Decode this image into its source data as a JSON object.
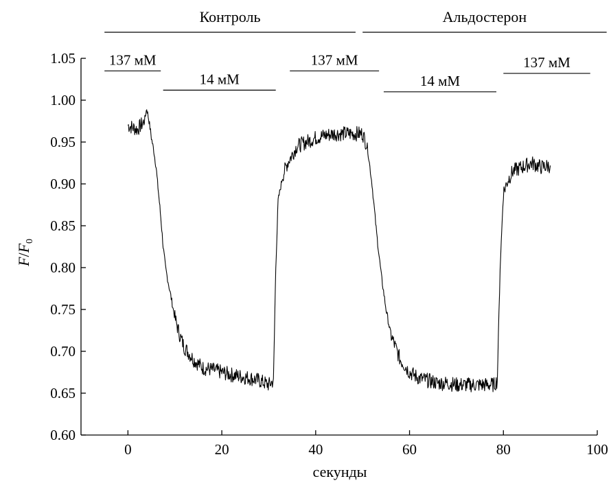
{
  "chart_data": {
    "type": "line",
    "title": "",
    "xlabel": "секунды",
    "ylabel_main": "F",
    "ylabel_sub": "0",
    "xlim": [
      -10,
      100
    ],
    "ylim": [
      0.6,
      1.05
    ],
    "x_ticks": [
      0,
      20,
      40,
      60,
      80,
      100
    ],
    "x_tick_labels": [
      "0",
      "20",
      "40",
      "60",
      "80",
      "100"
    ],
    "y_ticks": [
      0.6,
      0.65,
      0.7,
      0.75,
      0.8,
      0.85,
      0.9,
      0.95,
      1.0,
      1.05
    ],
    "y_tick_labels": [
      "0.60",
      "0.65",
      "0.70",
      "0.75",
      "0.80",
      "0.85",
      "0.90",
      "0.95",
      "1.00",
      "1.05"
    ],
    "grid": false,
    "legend": "none",
    "series": [
      {
        "color": "#000000",
        "points": [
          [
            0,
            0.97
          ],
          [
            2,
            0.965
          ],
          [
            3.5,
            0.975
          ],
          [
            4,
            0.99
          ],
          [
            4.5,
            0.975
          ],
          [
            5,
            0.955
          ],
          [
            5.5,
            0.94
          ],
          [
            6,
            0.92
          ],
          [
            6.5,
            0.89
          ],
          [
            7,
            0.86
          ],
          [
            7.5,
            0.825
          ],
          [
            8,
            0.8
          ],
          [
            9,
            0.77
          ],
          [
            10,
            0.74
          ],
          [
            11,
            0.72
          ],
          [
            12,
            0.705
          ],
          [
            14,
            0.69
          ],
          [
            16,
            0.68
          ],
          [
            18,
            0.678
          ],
          [
            20,
            0.675
          ],
          [
            22,
            0.672
          ],
          [
            24,
            0.67
          ],
          [
            26,
            0.668
          ],
          [
            28,
            0.665
          ],
          [
            30,
            0.66
          ],
          [
            31,
            0.665
          ],
          [
            31.5,
            0.8
          ],
          [
            32,
            0.88
          ],
          [
            33,
            0.91
          ],
          [
            34,
            0.925
          ],
          [
            35,
            0.935
          ],
          [
            36,
            0.945
          ],
          [
            38,
            0.95
          ],
          [
            40,
            0.955
          ],
          [
            42,
            0.958
          ],
          [
            44,
            0.96
          ],
          [
            46,
            0.96
          ],
          [
            48,
            0.96
          ],
          [
            50,
            0.96
          ],
          [
            51,
            0.945
          ],
          [
            52,
            0.9
          ],
          [
            53,
            0.84
          ],
          [
            54,
            0.79
          ],
          [
            55,
            0.75
          ],
          [
            56,
            0.72
          ],
          [
            57,
            0.705
          ],
          [
            58,
            0.69
          ],
          [
            59,
            0.683
          ],
          [
            60,
            0.675
          ],
          [
            62,
            0.668
          ],
          [
            64,
            0.665
          ],
          [
            66,
            0.662
          ],
          [
            68,
            0.662
          ],
          [
            70,
            0.66
          ],
          [
            72,
            0.66
          ],
          [
            74,
            0.66
          ],
          [
            76,
            0.66
          ],
          [
            78,
            0.66
          ],
          [
            78.7,
            0.665
          ],
          [
            79.3,
            0.8
          ],
          [
            80,
            0.89
          ],
          [
            81,
            0.905
          ],
          [
            82,
            0.915
          ],
          [
            84,
            0.92
          ],
          [
            86,
            0.925
          ],
          [
            88,
            0.92
          ],
          [
            90,
            0.922
          ]
        ]
      }
    ],
    "conditions": [
      {
        "label": "Контроль",
        "x_start": -5,
        "x_end": 48.5,
        "level": "top"
      },
      {
        "label": "Альдостерон",
        "x_start": 50,
        "x_end": 102,
        "level": "top"
      }
    ],
    "solution_bars": [
      {
        "label": "137 мМ",
        "x_start": -5,
        "x_end": 7,
        "y": 1.035
      },
      {
        "label": "14 мМ",
        "x_start": 7.5,
        "x_end": 31.5,
        "y": 1.012
      },
      {
        "label": "137 мМ",
        "x_start": 34.5,
        "x_end": 53.5,
        "y": 1.035
      },
      {
        "label": "14 мМ",
        "x_start": 54.5,
        "x_end": 78.5,
        "y": 1.01
      },
      {
        "label": "137 мМ",
        "x_start": 80,
        "x_end": 98.5,
        "y": 1.032
      }
    ]
  }
}
